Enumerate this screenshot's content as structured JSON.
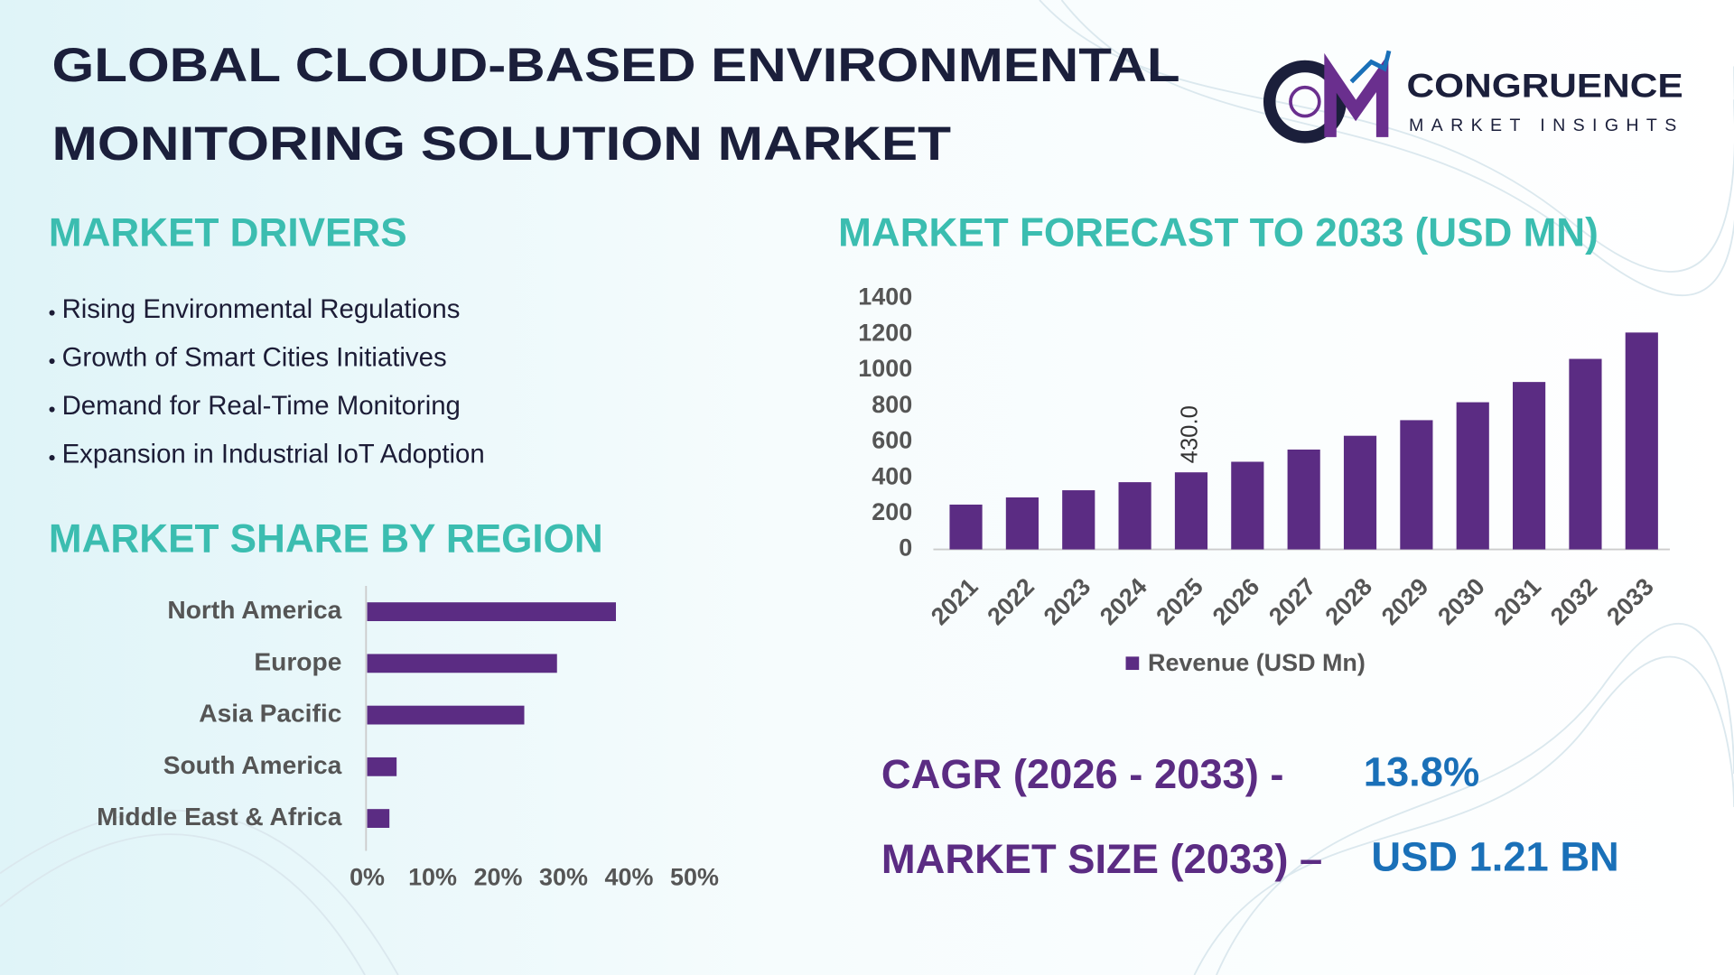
{
  "header": {
    "title_lines": [
      "GLOBAL CLOUD-BASED ENVIRONMENTAL",
      "MONITORING SOLUTION MARKET"
    ],
    "logo": {
      "name": "CONGRUENCE",
      "tagline": "MARKET INSIGHTS"
    }
  },
  "drivers": {
    "title": "MARKET DRIVERS",
    "items": [
      "Rising Environmental Regulations",
      "Growth of Smart Cities Initiatives",
      "Demand for Real-Time Monitoring",
      "Expansion in Industrial IoT Adoption"
    ]
  },
  "chart_data": [
    {
      "type": "bar",
      "orientation": "horizontal",
      "title": "MARKET SHARE BY REGION",
      "categories": [
        "North America",
        "Europe",
        "Asia Pacific",
        "South America",
        "Middle East & Africa"
      ],
      "values": [
        38,
        29,
        24,
        4.5,
        3.4
      ],
      "color": "#5b2c83",
      "xlim": [
        0,
        50
      ],
      "xticks": [
        {
          "value": 0,
          "label": "0%"
        },
        {
          "value": 10,
          "label": "10%"
        },
        {
          "value": 20,
          "label": "20%"
        },
        {
          "value": 30,
          "label": "30%"
        },
        {
          "value": 40,
          "label": "40%"
        },
        {
          "value": 50,
          "label": "50%"
        }
      ]
    },
    {
      "type": "bar",
      "orientation": "vertical",
      "title": "MARKET FORECAST TO 2033 (USD MN)",
      "categories": [
        "2021",
        "2022",
        "2023",
        "2024",
        "2025",
        "2026",
        "2027",
        "2028",
        "2029",
        "2030",
        "2031",
        "2032",
        "2033"
      ],
      "series": [
        {
          "name": "Revenue (USD Mn)",
          "color": "#5b2c83",
          "values": [
            250,
            290,
            330,
            375,
            430,
            489,
            557,
            634,
            721,
            821,
            934,
            1063,
            1210
          ],
          "value_labels": [
            null,
            null,
            null,
            null,
            "430.0",
            null,
            null,
            null,
            null,
            null,
            null,
            null,
            null
          ]
        }
      ],
      "ylim": [
        0,
        1400
      ],
      "yticks": [
        0,
        200,
        400,
        600,
        800,
        1000,
        1200,
        1400
      ],
      "legend": "bottom"
    }
  ],
  "stats": {
    "cagr_label": "CAGR (2026 - 2033) -",
    "cagr_value": "13.8%",
    "size_label": "MARKET SIZE (2033) –",
    "size_value": "USD 1.21 BN"
  }
}
